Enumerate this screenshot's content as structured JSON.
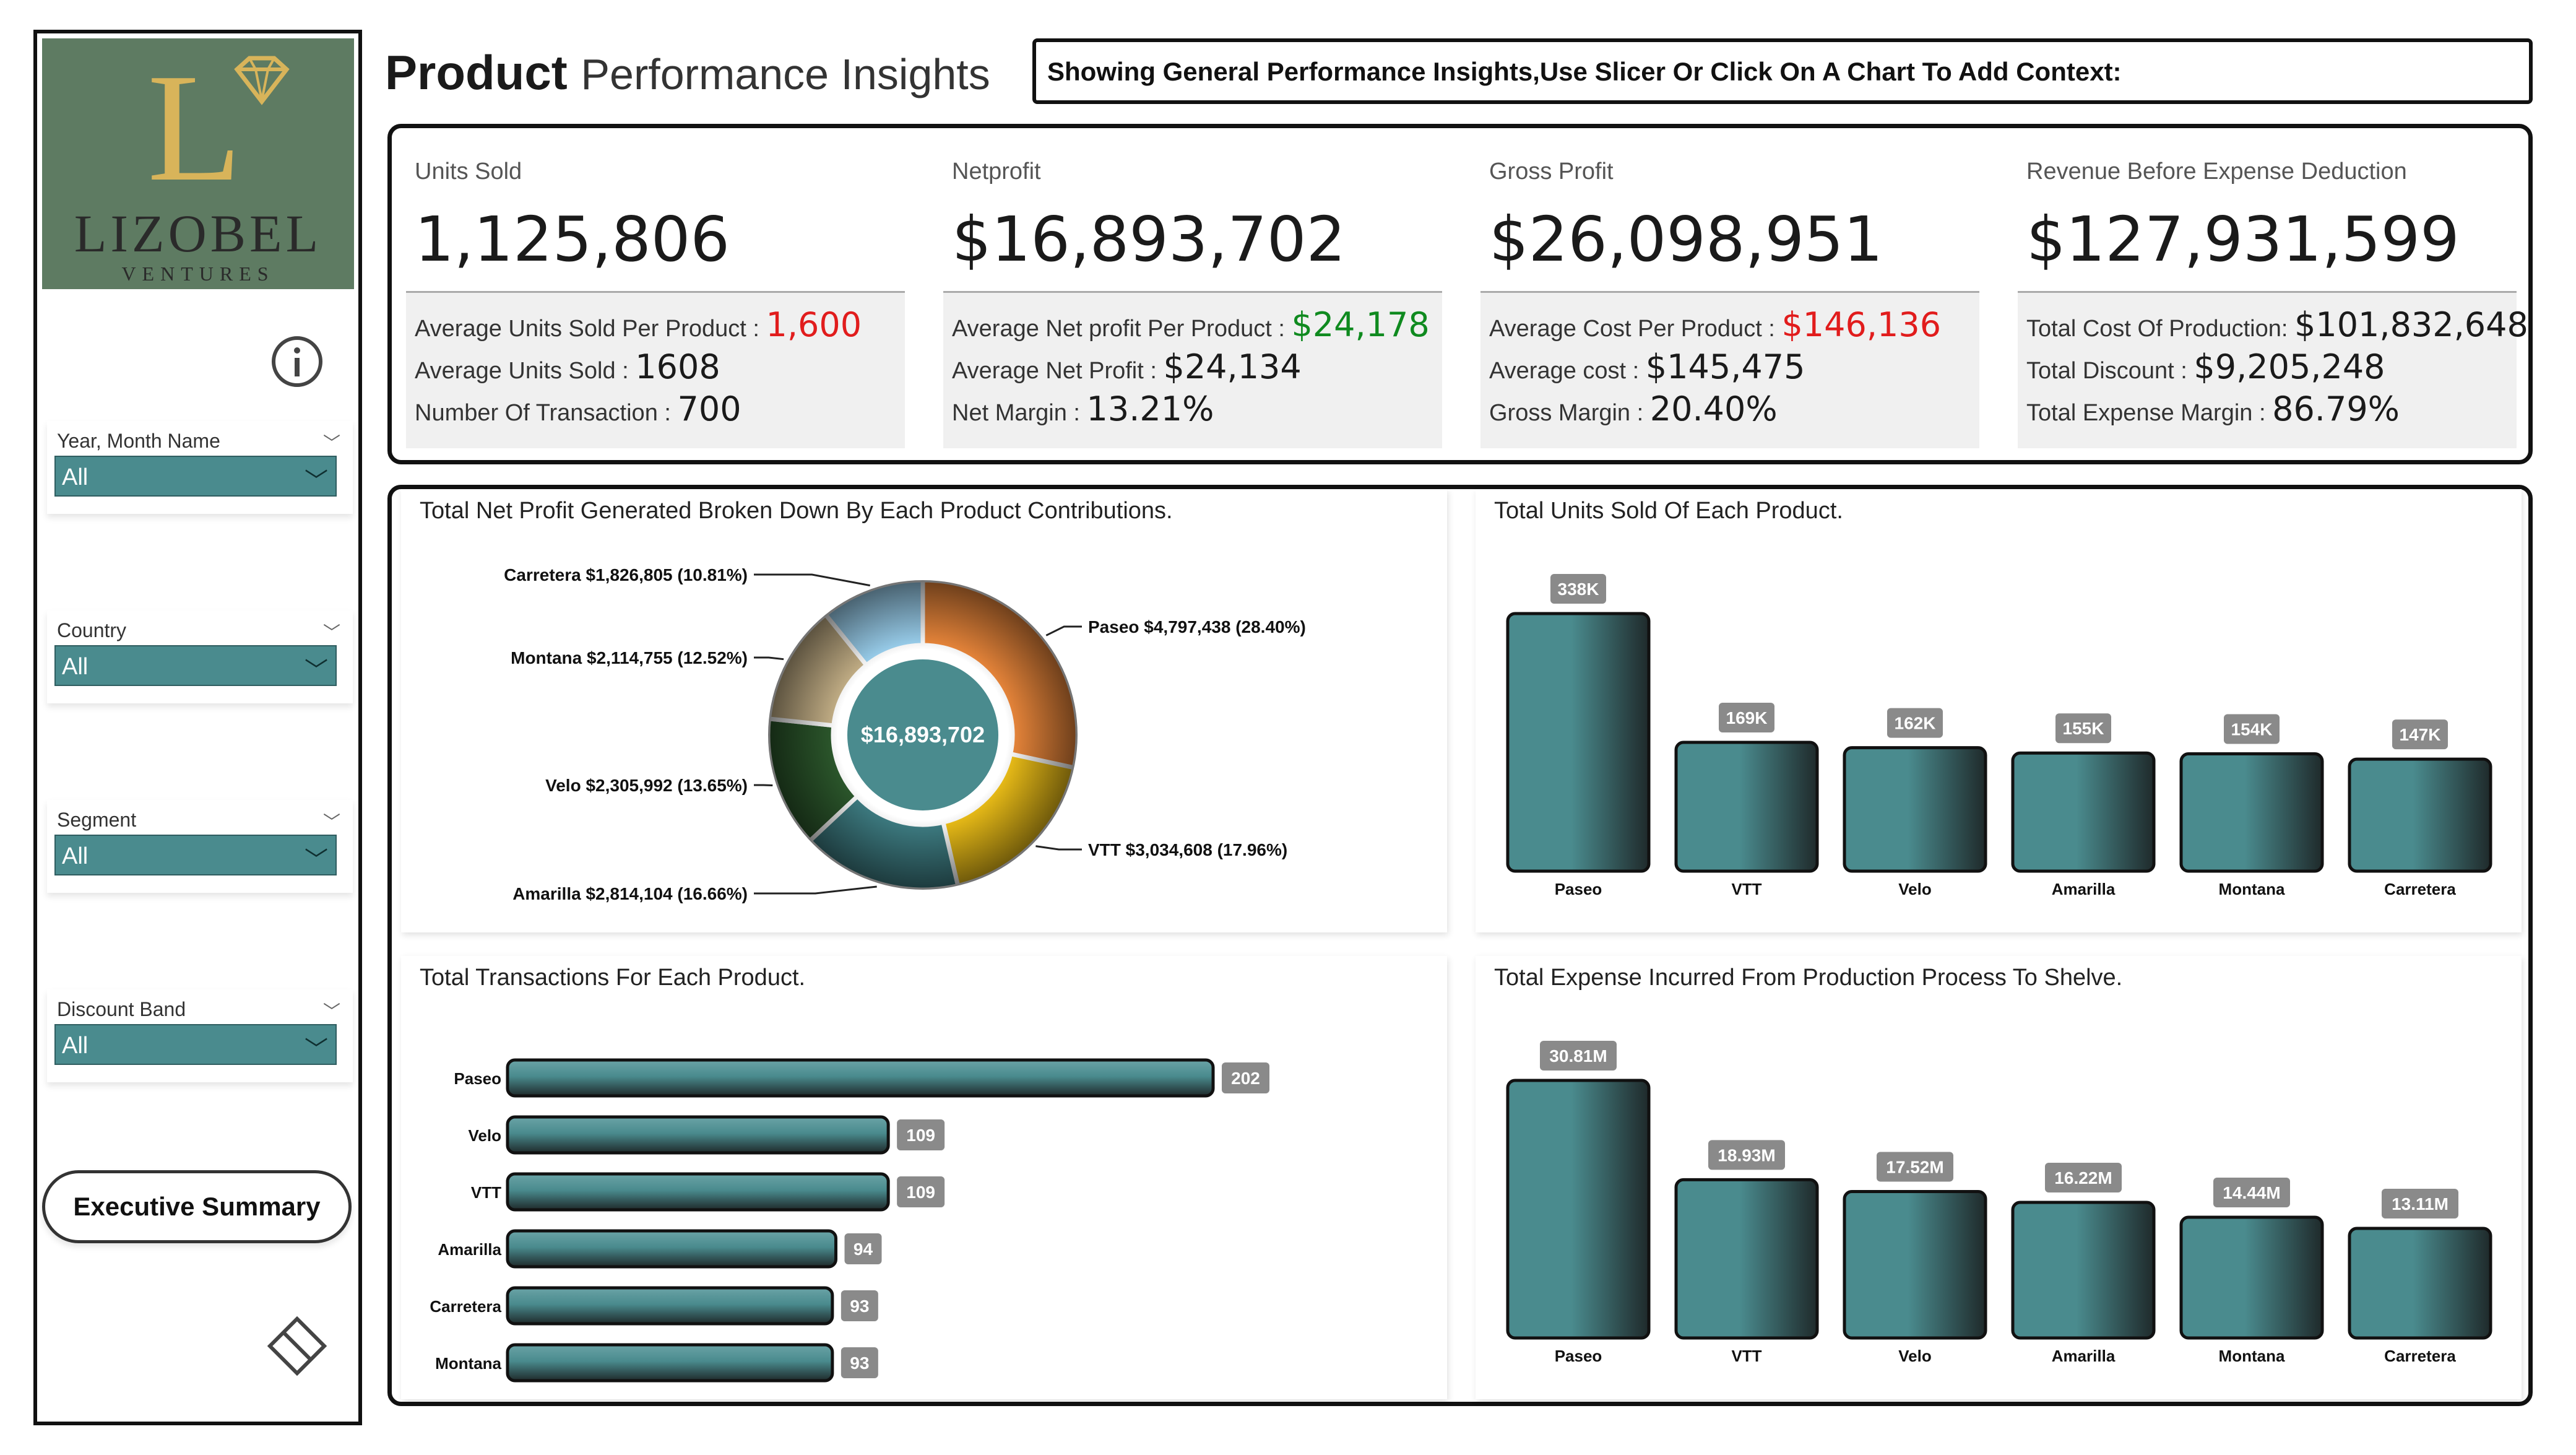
{
  "logo": {
    "brand": "LIZOBEL",
    "sub": "VENTURES",
    "initial": "L"
  },
  "header": {
    "title_bold": "Product",
    "title_light": "Performance Insights",
    "context_text": "Showing General Performance Insights,Use Slicer Or Click On A Chart To Add Context:"
  },
  "slicers": [
    {
      "label": "Year, Month Name",
      "value": "All"
    },
    {
      "label": "Country",
      "value": "All"
    },
    {
      "label": "Segment",
      "value": "All"
    },
    {
      "label": "Discount Band",
      "value": "All"
    }
  ],
  "sidebar": {
    "info_icon": "info-icon",
    "exec_button": "Executive Summary",
    "nav_icon": "diamond-outline-icon"
  },
  "kpis": [
    {
      "title": "Units Sold",
      "value": "1,125,806",
      "lines": [
        {
          "label": "Average Units Sold Per Product :",
          "value": "1,600",
          "color": "red"
        },
        {
          "label": "Average Units Sold :",
          "value": "1608",
          "color": ""
        },
        {
          "label": "Number Of Transaction :",
          "value": "700",
          "color": ""
        }
      ]
    },
    {
      "title": "Netprofit",
      "value": "$16,893,702",
      "lines": [
        {
          "label": "Average Net profit Per Product :",
          "value": "$24,178",
          "color": "green"
        },
        {
          "label": "Average Net Profit :",
          "value": "$24,134",
          "color": ""
        },
        {
          "label": "Net Margin :",
          "value": "13.21%",
          "color": ""
        }
      ]
    },
    {
      "title": "Gross Profit",
      "value": "$26,098,951",
      "lines": [
        {
          "label": "Average Cost Per Product :",
          "value": "$146,136",
          "color": "red"
        },
        {
          "label": "Average cost :",
          "value": "$145,475",
          "color": ""
        },
        {
          "label": "Gross Margin :",
          "value": "20.40%",
          "color": ""
        }
      ]
    },
    {
      "title": "Revenue Before Expense Deduction",
      "value": "$127,931,599",
      "lines": [
        {
          "label": "Total Cost Of Production:",
          "value": "$101,832,648",
          "color": ""
        },
        {
          "label": "Total Discount :",
          "value": "$9,205,248",
          "color": ""
        },
        {
          "label": "Total Expense Margin :",
          "value": "86.79%",
          "color": ""
        }
      ]
    }
  ],
  "colors": {
    "teal": "#4a8b8e",
    "teal_dark": "#2b3e3f",
    "red": "#e11c1c",
    "green": "#0f8a1f",
    "logo_bg": "#5e7b62"
  },
  "chart_data": [
    {
      "type": "pie",
      "title": "Total Net Profit Generated Broken Down By Each Product Contributions.",
      "center_label": "$16,893,702",
      "slices": [
        {
          "name": "Paseo",
          "value": 4797438,
          "percent": 28.4,
          "label": "Paseo $4,797,438 (28.40%)",
          "color": "#f08a3c"
        },
        {
          "name": "VTT",
          "value": 3034608,
          "percent": 17.96,
          "label": "VTT $3,034,608 (17.96%)",
          "color": "#f2c318"
        },
        {
          "name": "Amarilla",
          "value": 2814104,
          "percent": 16.66,
          "label": "Amarilla $2,814,104 (16.66%)",
          "color": "#3f7f85"
        },
        {
          "name": "Velo",
          "value": 2305992,
          "percent": 13.65,
          "label": "Velo $2,305,992 (13.65%)",
          "color": "#2d5a2d"
        },
        {
          "name": "Montana",
          "value": 2114755,
          "percent": 12.52,
          "label": "Montana $2,114,755 (12.52%)",
          "color": "#c9b48a"
        },
        {
          "name": "Carretera",
          "value": 1826805,
          "percent": 10.81,
          "label": "Carretera $1,826,805 (10.81%)",
          "color": "#9fd6f5"
        }
      ]
    },
    {
      "type": "bar",
      "title": "Total Units Sold Of Each Product.",
      "categories": [
        "Paseo",
        "VTT",
        "Velo",
        "Amarilla",
        "Montana",
        "Carretera"
      ],
      "values": [
        338000,
        169000,
        162000,
        155000,
        154000,
        147000
      ],
      "data_labels": [
        "338K",
        "169K",
        "162K",
        "155K",
        "154K",
        "147K"
      ]
    },
    {
      "type": "bar",
      "orientation": "horizontal",
      "title": "Total Transactions For Each Product.",
      "categories": [
        "Paseo",
        "Velo",
        "VTT",
        "Amarilla",
        "Carretera",
        "Montana"
      ],
      "values": [
        202,
        109,
        109,
        94,
        93,
        93
      ],
      "data_labels": [
        "202",
        "109",
        "109",
        "94",
        "93",
        "93"
      ]
    },
    {
      "type": "bar",
      "title": "Total Expense Incurred From Production Process To Shelve.",
      "categories": [
        "Paseo",
        "VTT",
        "Velo",
        "Amarilla",
        "Montana",
        "Carretera"
      ],
      "values": [
        30.81,
        18.93,
        17.52,
        16.22,
        14.44,
        13.11
      ],
      "unit": "M",
      "data_labels": [
        "30.81M",
        "18.93M",
        "17.52M",
        "16.22M",
        "14.44M",
        "13.11M"
      ]
    }
  ]
}
